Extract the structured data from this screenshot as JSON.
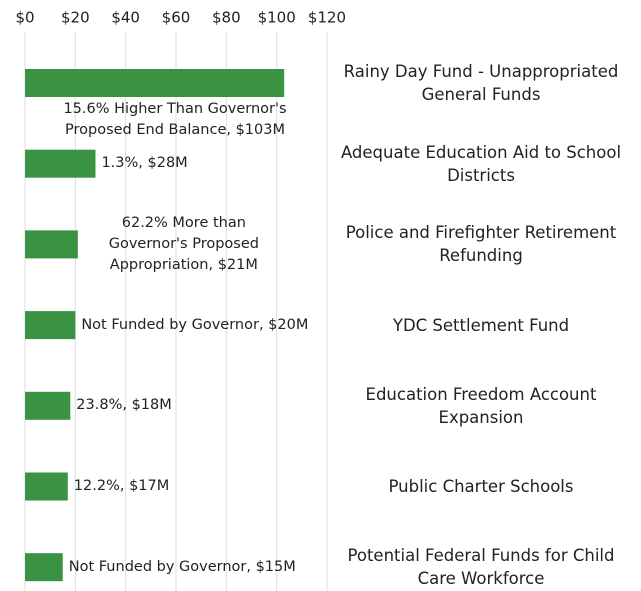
{
  "chart_data": {
    "type": "barh",
    "categories": [
      "Rainy Day Fund - Unappropriated General Funds",
      "Adequate Education Aid to School Districts",
      "Police and Firefighter Retirement Refunding",
      "YDC Settlement Fund",
      "Education Freedom Account Expansion",
      "Public Charter Schools",
      "Potential Federal Funds for Child Care Workforce"
    ],
    "values": [
      103,
      28,
      21,
      20,
      18,
      17,
      15
    ],
    "value_labels": [
      "15.6% Higher Than Governor's Proposed End Balance, $103M",
      "1.3%, $28M",
      "62.2% More than Governor's Proposed Appropriation, $21M",
      "Not Funded by Governor, $20M",
      "23.8%, $18M",
      "12.2%, $17M",
      "Not Funded by Governor, $15M"
    ],
    "color": "#3a9243",
    "xlim": [
      0,
      120
    ],
    "xticks": [
      {
        "value": 0,
        "label": "$0"
      },
      {
        "value": 20,
        "label": "$20"
      },
      {
        "value": 40,
        "label": "$40"
      },
      {
        "value": 60,
        "label": "$60"
      },
      {
        "value": 80,
        "label": "$80"
      },
      {
        "value": 100,
        "label": "$100"
      },
      {
        "value": 120,
        "label": "$120"
      }
    ],
    "grid": true
  }
}
